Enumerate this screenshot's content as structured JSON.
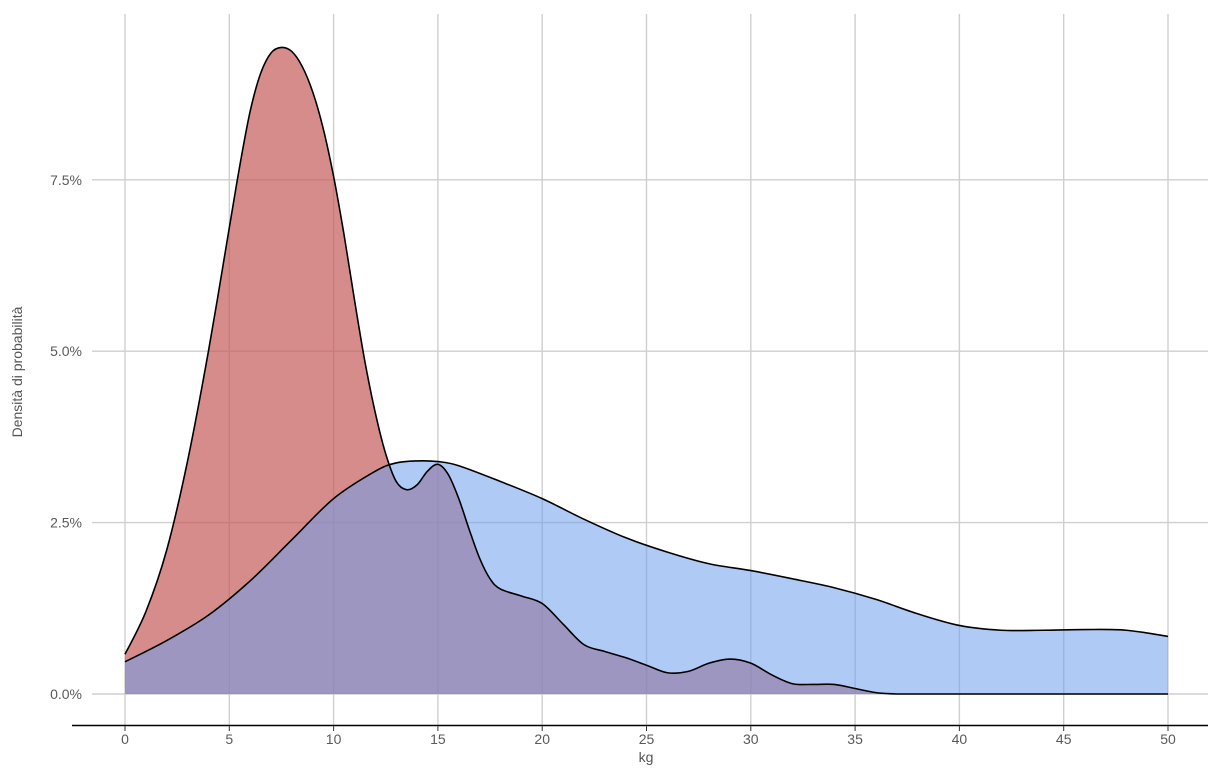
{
  "chart_data": {
    "type": "area",
    "xlabel": "kg",
    "ylabel": "Densità di probabilità",
    "xlim": [
      -2.5,
      52
    ],
    "ylim": [
      -0.0008,
      0.1
    ],
    "x_ticks": [
      0,
      5,
      10,
      15,
      20,
      25,
      30,
      35,
      40,
      45,
      50
    ],
    "x_tick_labels": [
      "0",
      "5",
      "10",
      "15",
      "20",
      "25",
      "30",
      "35",
      "40",
      "45",
      "50"
    ],
    "y_ticks": [
      0,
      0.025,
      0.05,
      0.075
    ],
    "y_tick_labels": [
      "0.0%",
      "2.5%",
      "5.0%",
      "7.5%"
    ],
    "grid": true,
    "legend": "none",
    "colors": {
      "series_a": "#c45555",
      "series_b": "#6d9eeb",
      "outline": "#000000",
      "grid": "#cfcfcf"
    },
    "series": [
      {
        "color": "#c45555",
        "opacity": 0.68,
        "x": [
          0,
          1,
          2,
          3,
          4,
          5,
          5.5,
          6,
          6.5,
          7,
          7.5,
          8,
          8.5,
          9,
          9.5,
          10,
          10.5,
          11,
          11.5,
          12,
          12.5,
          13,
          13.5,
          14,
          14.5,
          15,
          15.5,
          16,
          16.5,
          17,
          17.5,
          18,
          19,
          20,
          21,
          22,
          23,
          24,
          25,
          26,
          27,
          28,
          29,
          30,
          31,
          32,
          33,
          34,
          35,
          36,
          37,
          38,
          40,
          45,
          50
        ],
        "y": [
          0.0058,
          0.012,
          0.021,
          0.034,
          0.05,
          0.068,
          0.077,
          0.085,
          0.0905,
          0.0935,
          0.0943,
          0.0937,
          0.0915,
          0.0878,
          0.0825,
          0.0755,
          0.067,
          0.0575,
          0.0485,
          0.041,
          0.035,
          0.031,
          0.0298,
          0.0305,
          0.0325,
          0.0335,
          0.032,
          0.0285,
          0.024,
          0.0198,
          0.0168,
          0.0153,
          0.0143,
          0.0132,
          0.0102,
          0.0072,
          0.0062,
          0.0053,
          0.0042,
          0.0031,
          0.0033,
          0.0045,
          0.0051,
          0.0045,
          0.0028,
          0.0015,
          0.0014,
          0.0014,
          0.0008,
          0.0002,
          0,
          0,
          0,
          0,
          0
        ]
      },
      {
        "color": "#6d9eeb",
        "opacity": 0.55,
        "x": [
          0,
          2,
          4,
          6,
          8,
          10,
          12,
          13,
          14,
          15,
          16,
          18,
          20,
          22,
          24,
          26,
          28,
          30,
          32,
          34,
          36,
          38,
          40,
          42,
          44,
          46,
          48,
          50
        ],
        "y": [
          0.0047,
          0.0078,
          0.0115,
          0.0165,
          0.0225,
          0.0285,
          0.0325,
          0.0337,
          0.034,
          0.0339,
          0.0333,
          0.031,
          0.0285,
          0.0255,
          0.0228,
          0.0207,
          0.019,
          0.018,
          0.0168,
          0.0155,
          0.0138,
          0.0117,
          0.01,
          0.0093,
          0.0093,
          0.0094,
          0.0093,
          0.0084
        ]
      }
    ]
  }
}
